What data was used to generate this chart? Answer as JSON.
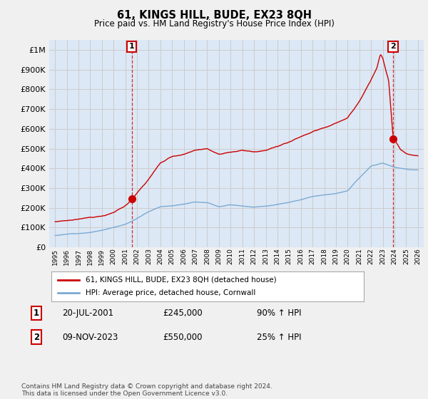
{
  "title": "61, KINGS HILL, BUDE, EX23 8QH",
  "subtitle": "Price paid vs. HM Land Registry's House Price Index (HPI)",
  "legend_line1": "61, KINGS HILL, BUDE, EX23 8QH (detached house)",
  "legend_line2": "HPI: Average price, detached house, Cornwall",
  "annotation1_num": "1",
  "annotation1_date": "20-JUL-2001",
  "annotation1_price": "£245,000",
  "annotation1_hpi": "90% ↑ HPI",
  "annotation2_num": "2",
  "annotation2_date": "09-NOV-2023",
  "annotation2_price": "£550,000",
  "annotation2_hpi": "25% ↑ HPI",
  "footer": "Contains HM Land Registry data © Crown copyright and database right 2024.\nThis data is licensed under the Open Government Licence v3.0.",
  "price_color": "#cc0000",
  "hpi_color": "#7aaad4",
  "vline_color": "#cc0000",
  "grid_color": "#cccccc",
  "bg_color": "#eaf0f8",
  "plot_bg": "#dce8f5",
  "ylim": [
    0,
    1050000
  ],
  "yticks": [
    0,
    100000,
    200000,
    300000,
    400000,
    500000,
    600000,
    700000,
    800000,
    900000,
    1000000
  ],
  "xlim_start": 1994.5,
  "xlim_end": 2026.5,
  "sale1_x": 2001.55,
  "sale1_y": 245000,
  "sale2_x": 2023.87,
  "sale2_y": 550000,
  "hpi_keypoints": [
    [
      1995.0,
      60000
    ],
    [
      1996.0,
      67000
    ],
    [
      1997.0,
      72000
    ],
    [
      1998.0,
      78000
    ],
    [
      1999.0,
      88000
    ],
    [
      2000.0,
      103000
    ],
    [
      2001.0,
      120000
    ],
    [
      2002.0,
      150000
    ],
    [
      2003.0,
      185000
    ],
    [
      2004.0,
      210000
    ],
    [
      2005.0,
      215000
    ],
    [
      2006.0,
      225000
    ],
    [
      2007.0,
      238000
    ],
    [
      2008.0,
      235000
    ],
    [
      2009.0,
      215000
    ],
    [
      2010.0,
      225000
    ],
    [
      2011.0,
      220000
    ],
    [
      2012.0,
      215000
    ],
    [
      2013.0,
      220000
    ],
    [
      2014.0,
      228000
    ],
    [
      2015.0,
      238000
    ],
    [
      2016.0,
      250000
    ],
    [
      2017.0,
      265000
    ],
    [
      2018.0,
      273000
    ],
    [
      2019.0,
      282000
    ],
    [
      2020.0,
      295000
    ],
    [
      2021.0,
      360000
    ],
    [
      2022.0,
      420000
    ],
    [
      2023.0,
      435000
    ],
    [
      2024.0,
      415000
    ],
    [
      2025.0,
      405000
    ],
    [
      2026.0,
      400000
    ]
  ],
  "prop_keypoints": [
    [
      1995.0,
      130000
    ],
    [
      1996.0,
      135000
    ],
    [
      1997.0,
      140000
    ],
    [
      1998.0,
      148000
    ],
    [
      1999.0,
      158000
    ],
    [
      2000.0,
      175000
    ],
    [
      2001.0,
      210000
    ],
    [
      2001.55,
      245000
    ],
    [
      2002.0,
      280000
    ],
    [
      2003.0,
      350000
    ],
    [
      2004.0,
      430000
    ],
    [
      2005.0,
      460000
    ],
    [
      2006.0,
      470000
    ],
    [
      2007.0,
      490000
    ],
    [
      2008.0,
      500000
    ],
    [
      2009.0,
      465000
    ],
    [
      2010.0,
      475000
    ],
    [
      2011.0,
      490000
    ],
    [
      2012.0,
      480000
    ],
    [
      2013.0,
      485000
    ],
    [
      2014.0,
      500000
    ],
    [
      2015.0,
      520000
    ],
    [
      2016.0,
      545000
    ],
    [
      2017.0,
      570000
    ],
    [
      2018.0,
      590000
    ],
    [
      2019.0,
      610000
    ],
    [
      2020.0,
      635000
    ],
    [
      2021.0,
      720000
    ],
    [
      2022.0,
      830000
    ],
    [
      2022.5,
      890000
    ],
    [
      2022.8,
      960000
    ],
    [
      2023.0,
      940000
    ],
    [
      2023.3,
      870000
    ],
    [
      2023.5,
      830000
    ],
    [
      2023.87,
      550000
    ],
    [
      2024.0,
      530000
    ],
    [
      2024.5,
      480000
    ],
    [
      2025.0,
      460000
    ],
    [
      2026.0,
      450000
    ]
  ]
}
